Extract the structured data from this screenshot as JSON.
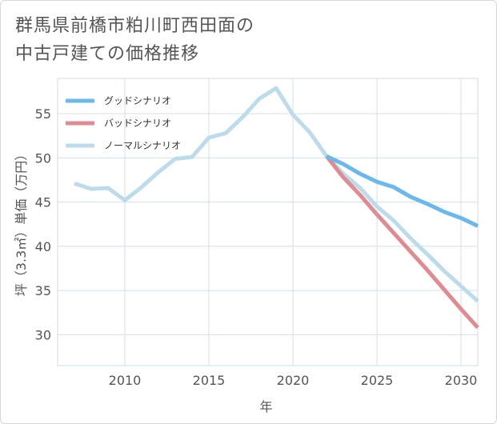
{
  "title_line1": "群馬県前橋市粕川町西田面の",
  "title_line2": "中古戸建ての価格推移",
  "chart_data": {
    "type": "line",
    "title": "群馬県前橋市粕川町西田面の中古戸建ての価格推移",
    "xlabel": "年",
    "ylabel": "坪（3.3㎡）単価（万円）",
    "xlim": [
      2006,
      2031
    ],
    "ylim": [
      26.5,
      59
    ],
    "xticks": [
      2010,
      2015,
      2020,
      2025,
      2030
    ],
    "yticks": [
      30,
      35,
      40,
      45,
      50,
      55
    ],
    "legend_position": "top-left",
    "series": [
      {
        "name": "グッドシナリオ",
        "color": "#6ab8ec",
        "x": [
          2022,
          2023,
          2024,
          2025,
          2026,
          2027,
          2028,
          2029,
          2030,
          2031
        ],
        "y": [
          50.2,
          49.3,
          48.2,
          47.3,
          46.7,
          45.6,
          44.8,
          43.9,
          43.2,
          42.3
        ]
      },
      {
        "name": "バッドシナリオ",
        "color": "#e08a92",
        "x": [
          2022,
          2023,
          2024,
          2025,
          2026,
          2027,
          2028,
          2029,
          2030,
          2031
        ],
        "y": [
          50.2,
          47.8,
          45.8,
          43.6,
          41.5,
          39.4,
          37.3,
          35.1,
          32.9,
          30.8
        ]
      },
      {
        "name": "ノーマルシナリオ",
        "color": "#bcdcec",
        "x": [
          2007,
          2008,
          2009,
          2010,
          2011,
          2012,
          2013,
          2014,
          2015,
          2016,
          2017,
          2018,
          2019,
          2020,
          2021,
          2022,
          2023,
          2024,
          2025,
          2026,
          2027,
          2028,
          2029,
          2030,
          2031
        ],
        "y": [
          47.1,
          46.5,
          46.6,
          45.2,
          46.7,
          48.4,
          49.9,
          50.1,
          52.3,
          52.8,
          54.6,
          56.7,
          57.9,
          54.9,
          52.9,
          50.2,
          48.2,
          46.6,
          44.5,
          42.9,
          40.9,
          39.1,
          37.2,
          35.5,
          33.8
        ]
      }
    ]
  }
}
